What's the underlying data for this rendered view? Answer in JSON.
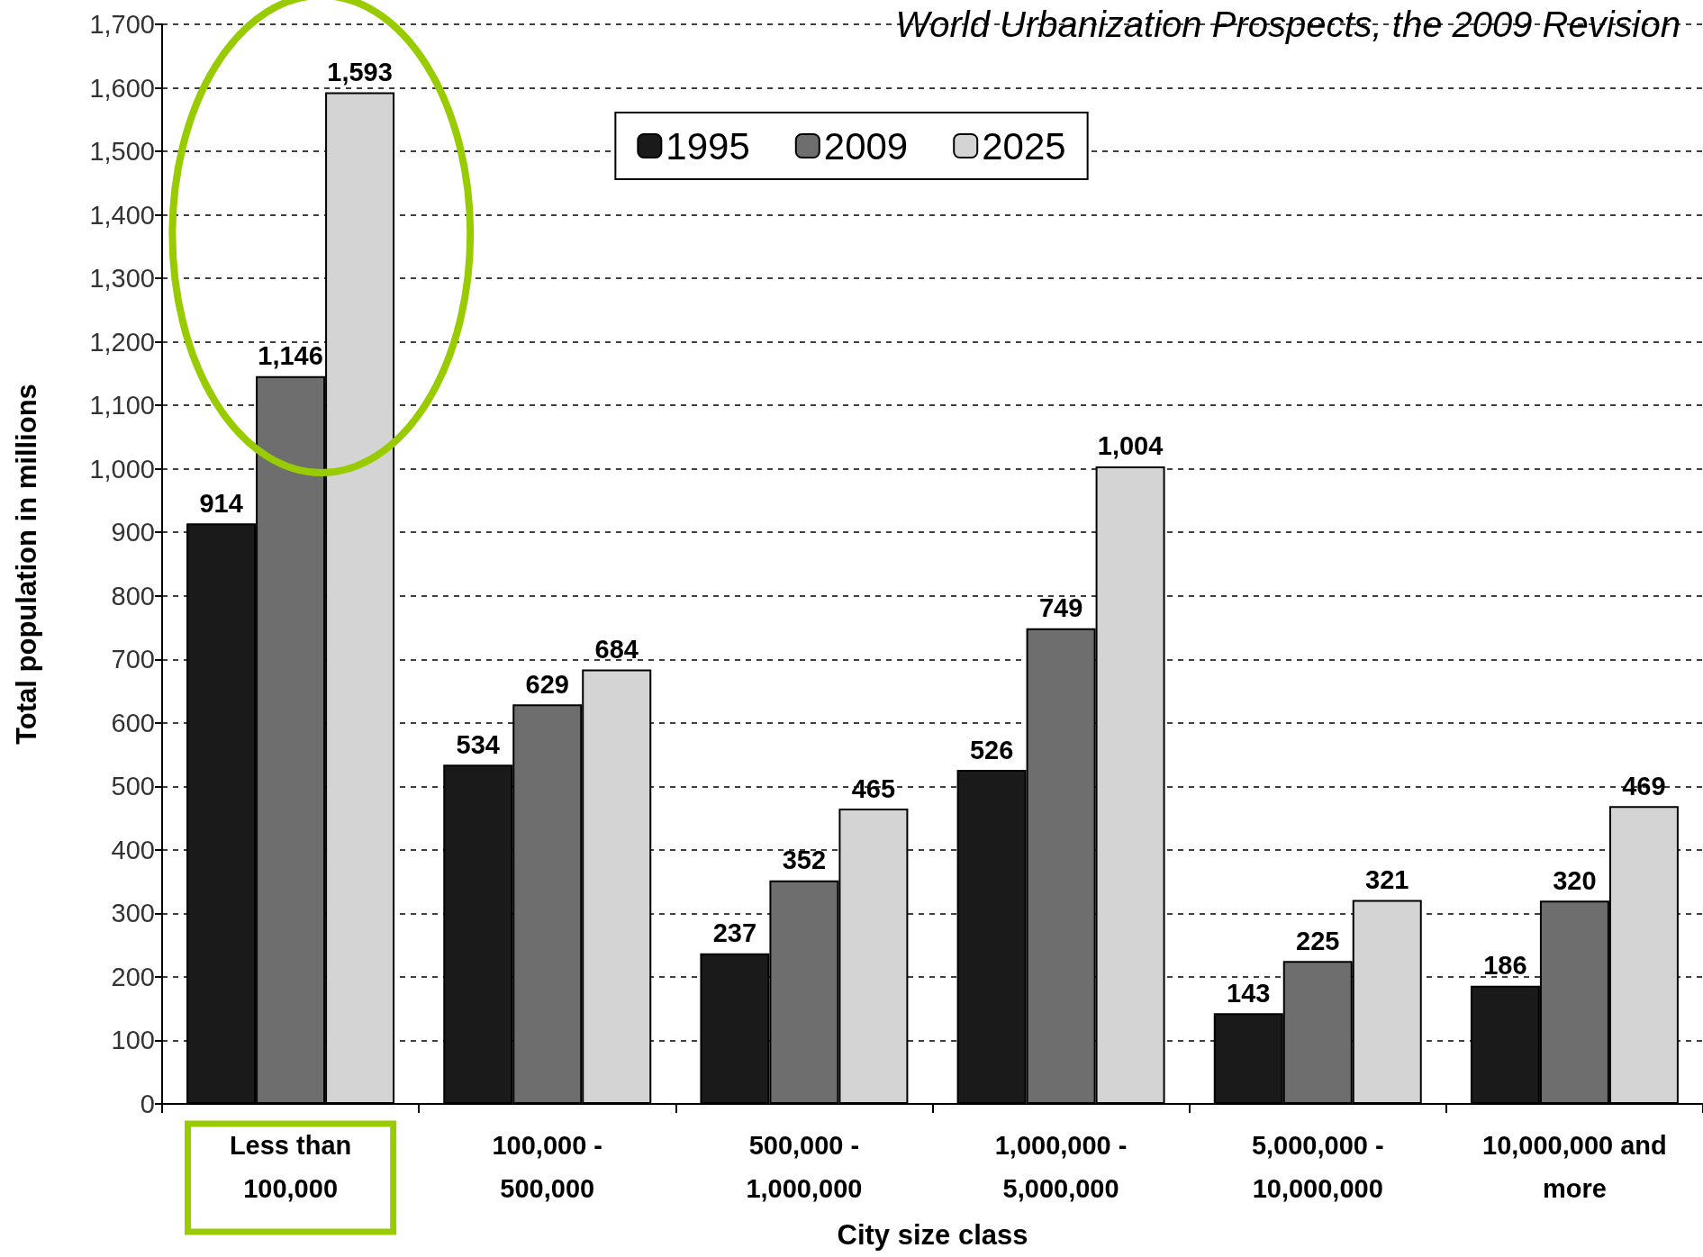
{
  "chart_data": {
    "type": "bar",
    "title": "World Urbanization Prospects, the 2009 Revision",
    "xlabel": "City size class",
    "ylabel": "Total population in millions",
    "categories": [
      "Less than 100,000",
      "100,000 - 500,000",
      "500,000 - 1,000,000",
      "1,000,000 - 5,000,000",
      "5,000,000 - 10,000,000",
      "10,000,000 and more"
    ],
    "series": [
      {
        "name": "1995",
        "color": "#1a1a1a",
        "values": [
          914,
          534,
          237,
          526,
          143,
          186
        ],
        "value_labels": [
          "914",
          "534",
          "237",
          "526",
          "143",
          "186"
        ]
      },
      {
        "name": "2009",
        "color": "#6e6e6e",
        "values": [
          1146,
          629,
          352,
          749,
          225,
          320
        ],
        "value_labels": [
          "1,146",
          "629",
          "352",
          "749",
          "225",
          "320"
        ]
      },
      {
        "name": "2025",
        "color": "#d4d4d4",
        "values": [
          1593,
          684,
          465,
          1004,
          321,
          469
        ],
        "value_labels": [
          "1,593",
          "684",
          "465",
          "1,004",
          "321",
          "469"
        ]
      }
    ],
    "ylim": [
      0,
      1700
    ],
    "yticks": [
      0,
      100,
      200,
      300,
      400,
      500,
      600,
      700,
      800,
      900,
      {
        "value": 1000,
        "label": "1,000"
      },
      {
        "value": 1100,
        "label": "1,100"
      },
      {
        "value": 1200,
        "label": "1,200"
      },
      {
        "value": 1300,
        "label": "1,300"
      },
      {
        "value": 1400,
        "label": "1,400"
      },
      {
        "value": 1500,
        "label": "1,500"
      },
      {
        "value": 1600,
        "label": "1,600"
      },
      {
        "value": 1700,
        "label": "1,700"
      }
    ],
    "grid": "y",
    "legend": "top"
  }
}
